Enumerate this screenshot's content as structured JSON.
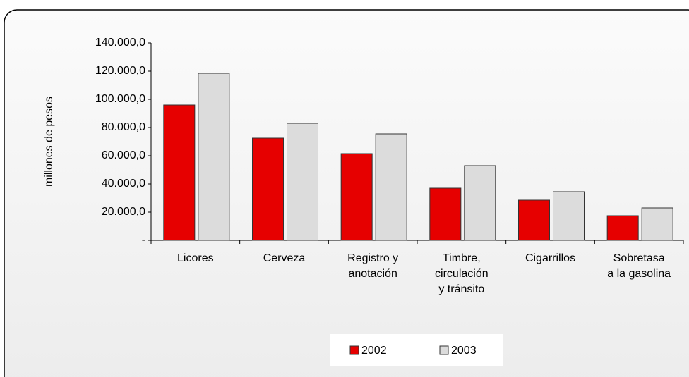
{
  "chart_data": {
    "type": "bar",
    "y_label": "millones de pesos",
    "categories": [
      "Licores",
      "Cerveza",
      "Registro y\nanotación",
      "Timbre,\ncirculación\ny tránsito",
      "Cigarrillos",
      "Sobretasa\na la gasolina"
    ],
    "series": [
      {
        "name": "2002",
        "color": "#e60000",
        "values": [
          96000,
          72500,
          61500,
          37000,
          28500,
          17500
        ]
      },
      {
        "name": "2003",
        "color": "#dcdcdc",
        "values": [
          118500,
          83000,
          75500,
          53000,
          34500,
          23000
        ]
      }
    ],
    "ylim": [
      0,
      140000
    ],
    "yticks": [
      {
        "value": 0,
        "label": "-"
      },
      {
        "value": 20000,
        "label": "20.000,0"
      },
      {
        "value": 40000,
        "label": "40.000,0"
      },
      {
        "value": 60000,
        "label": "60.000,0"
      },
      {
        "value": 80000,
        "label": "80.000,0"
      },
      {
        "value": 100000,
        "label": "100.000,0"
      },
      {
        "value": 120000,
        "label": "120.000,0"
      },
      {
        "value": 140000,
        "label": "140.000,0"
      }
    ]
  }
}
